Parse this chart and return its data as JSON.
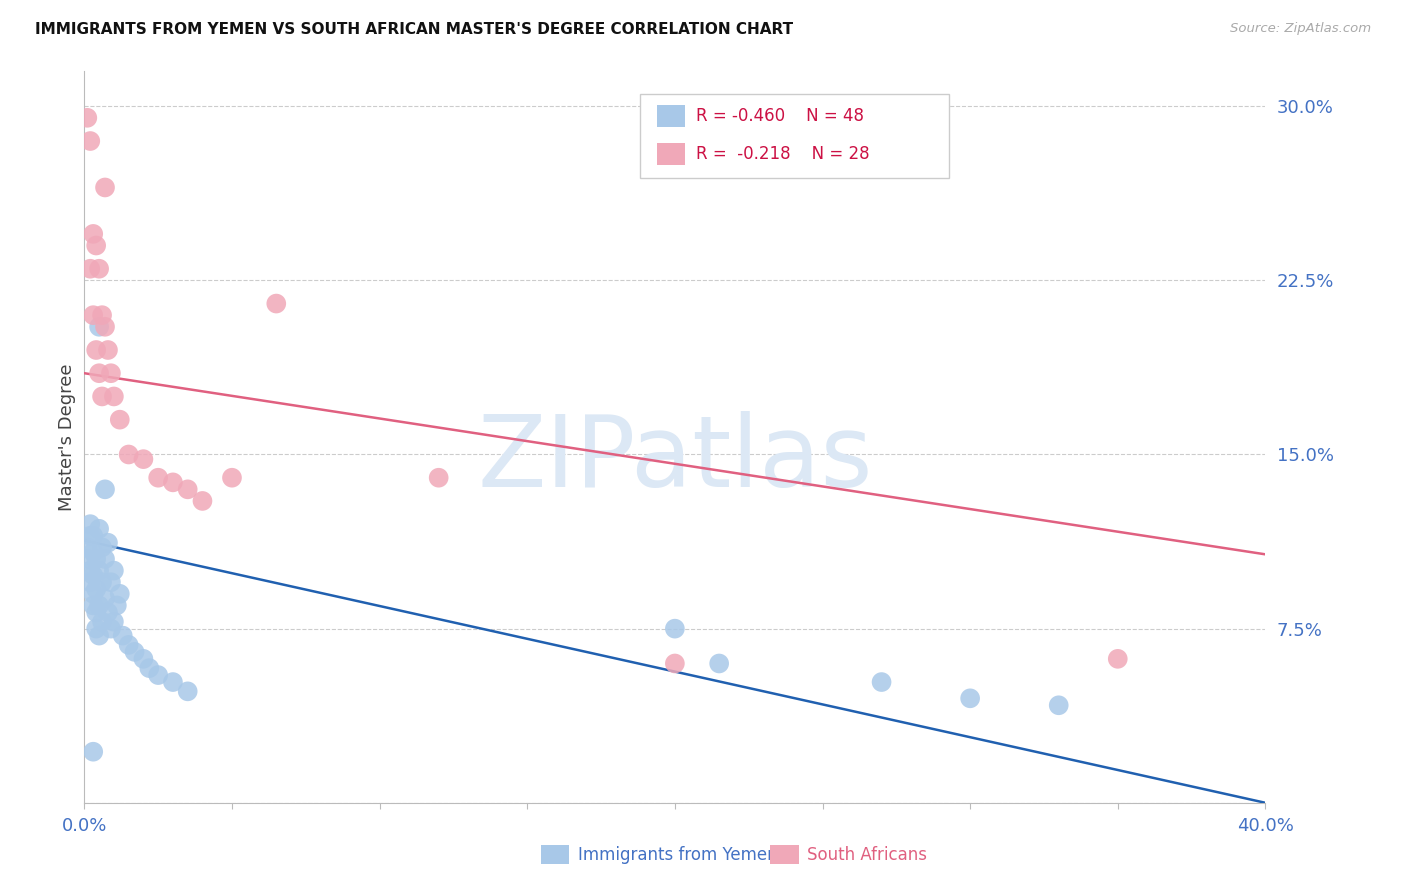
{
  "title": "IMMIGRANTS FROM YEMEN VS SOUTH AFRICAN MASTER'S DEGREE CORRELATION CHART",
  "source": "Source: ZipAtlas.com",
  "ylabel": "Master's Degree",
  "xmin": 0.0,
  "xmax": 0.4,
  "ymin": 0.0,
  "ymax": 0.315,
  "yticks": [
    0.0,
    0.075,
    0.15,
    0.225,
    0.3
  ],
  "ytick_labels": [
    "",
    "7.5%",
    "15.0%",
    "22.5%",
    "30.0%"
  ],
  "xticks": [
    0.0,
    0.05,
    0.1,
    0.15,
    0.2,
    0.25,
    0.3,
    0.35,
    0.4
  ],
  "xtick_labels": [
    "0.0%",
    "",
    "",
    "",
    "",
    "",
    "",
    "",
    "40.0%"
  ],
  "blue_color": "#a8c8e8",
  "blue_line_color": "#2060b0",
  "pink_color": "#f0a8b8",
  "pink_line_color": "#e06080",
  "axis_label_color": "#4472c4",
  "watermark": "ZIPatlas",
  "watermark_color": "#dce8f5",
  "background_color": "#ffffff",
  "title_fontsize": 11,
  "grid_color": "#cccccc",
  "blue_scatter_x": [
    0.001,
    0.001,
    0.002,
    0.002,
    0.002,
    0.002,
    0.003,
    0.003,
    0.003,
    0.003,
    0.003,
    0.004,
    0.004,
    0.004,
    0.004,
    0.005,
    0.005,
    0.005,
    0.005,
    0.006,
    0.006,
    0.006,
    0.007,
    0.007,
    0.008,
    0.008,
    0.009,
    0.009,
    0.01,
    0.01,
    0.011,
    0.012,
    0.013,
    0.015,
    0.017,
    0.02,
    0.022,
    0.025,
    0.03,
    0.035,
    0.2,
    0.215,
    0.27,
    0.3,
    0.33,
    0.005,
    0.007,
    0.003
  ],
  "blue_scatter_y": [
    0.11,
    0.105,
    0.12,
    0.115,
    0.1,
    0.095,
    0.115,
    0.108,
    0.098,
    0.09,
    0.085,
    0.105,
    0.092,
    0.082,
    0.075,
    0.118,
    0.1,
    0.085,
    0.072,
    0.11,
    0.095,
    0.078,
    0.105,
    0.088,
    0.112,
    0.082,
    0.095,
    0.075,
    0.1,
    0.078,
    0.085,
    0.09,
    0.072,
    0.068,
    0.065,
    0.062,
    0.058,
    0.055,
    0.052,
    0.048,
    0.075,
    0.06,
    0.052,
    0.045,
    0.042,
    0.205,
    0.135,
    0.022
  ],
  "pink_scatter_x": [
    0.001,
    0.002,
    0.002,
    0.003,
    0.003,
    0.004,
    0.004,
    0.005,
    0.005,
    0.006,
    0.006,
    0.007,
    0.008,
    0.009,
    0.01,
    0.012,
    0.015,
    0.02,
    0.025,
    0.03,
    0.035,
    0.04,
    0.05,
    0.065,
    0.12,
    0.2,
    0.35,
    0.007
  ],
  "pink_scatter_y": [
    0.295,
    0.285,
    0.23,
    0.245,
    0.21,
    0.24,
    0.195,
    0.23,
    0.185,
    0.21,
    0.175,
    0.205,
    0.195,
    0.185,
    0.175,
    0.165,
    0.15,
    0.148,
    0.14,
    0.138,
    0.135,
    0.13,
    0.14,
    0.215,
    0.14,
    0.06,
    0.062,
    0.265
  ],
  "blue_trendline_y0": 0.113,
  "blue_trendline_y1": 0.0,
  "pink_trendline_y0": 0.185,
  "pink_trendline_y1": 0.107,
  "bottom_legend_blue": "Immigrants from Yemen",
  "bottom_legend_pink": "South Africans",
  "legend_text_blue": "R = -0.460    N = 48",
  "legend_text_pink": "R =  -0.218    N = 28"
}
